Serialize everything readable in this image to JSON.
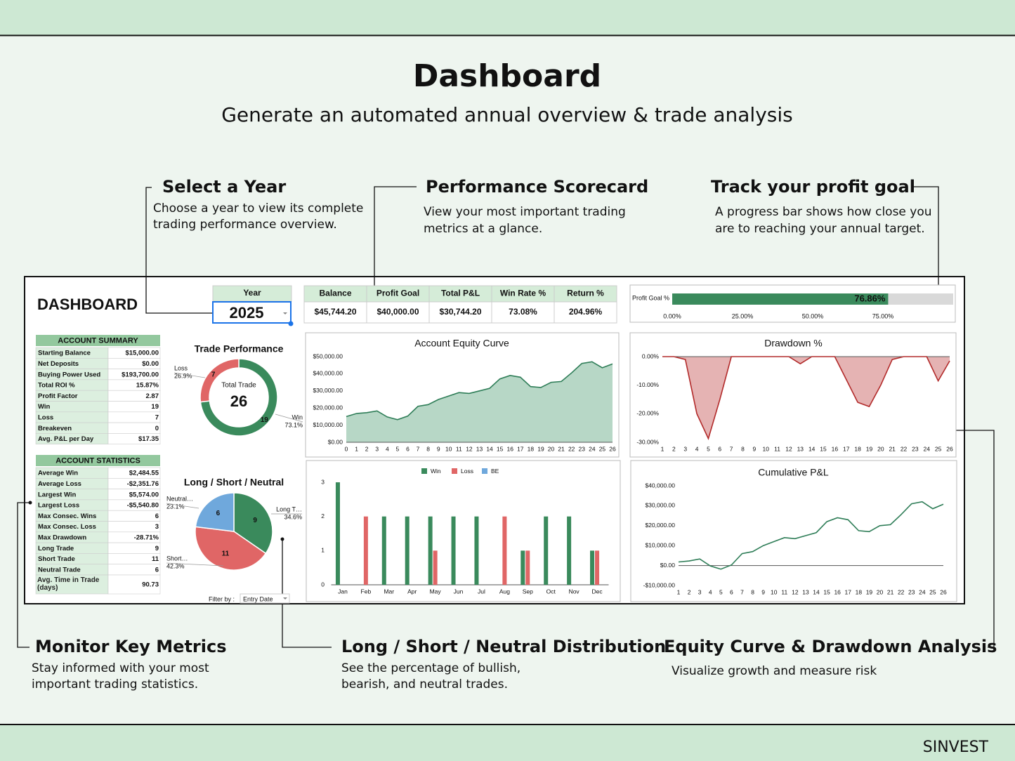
{
  "header": {
    "title": "Dashboard",
    "subtitle": "Generate an automated annual overview & trade analysis"
  },
  "callouts": [
    {
      "title": "Select a Year",
      "text": [
        "Choose a year to view its complete",
        "trading performance overview."
      ]
    },
    {
      "title": "Performance Scorecard",
      "text": [
        "View your most important trading",
        "metrics at a glance."
      ]
    },
    {
      "title": "Track your profit goal",
      "text": [
        "A progress bar shows how close you",
        "are to reaching your annual target."
      ]
    },
    {
      "title": "Monitor Key Metrics",
      "text": [
        "Stay informed with your most",
        "important trading statistics."
      ]
    },
    {
      "title": "Long / Short / Neutral Distribution",
      "text": [
        "See the percentage of bullish,",
        "bearish, and neutral trades."
      ]
    },
    {
      "title": "Equity Curve & Drawdown Analysis",
      "text": [
        "Visualize growth and measure risk"
      ]
    }
  ],
  "dashboard": {
    "title": "DASHBOARD",
    "year": {
      "label": "Year",
      "value": 2025
    },
    "scorecard": {
      "headers": [
        "Balance",
        "Profit Goal",
        "Total P&L",
        "Win Rate %",
        "Return %"
      ],
      "values": [
        "$45,744.20",
        "$40,000.00",
        "$30,744.20",
        "73.08%",
        "204.96%"
      ]
    },
    "profit_goal": {
      "label": "Profit Goal %",
      "value": 76.86,
      "value_label": "76.86%",
      "xlim": [
        0,
        100
      ],
      "xticks": [
        {
          "value": 0,
          "label": "0.00%"
        },
        {
          "value": 25,
          "label": "25.00%"
        },
        {
          "value": 50,
          "label": "50.00%"
        },
        {
          "value": 75,
          "label": "75.00%"
        }
      ],
      "color": "#3a8a5c"
    },
    "account_summary": {
      "title": "ACCOUNT SUMMARY",
      "rows": [
        [
          "Starting Balance",
          "$15,000.00"
        ],
        [
          "Net Deposits",
          "$0.00"
        ],
        [
          "Buying Power Used",
          "$193,700.00"
        ],
        [
          "Total ROI %",
          "15.87%"
        ],
        [
          "Profit Factor",
          "2.87"
        ],
        [
          "Win",
          "19"
        ],
        [
          "Loss",
          "7"
        ],
        [
          "Breakeven",
          "0"
        ],
        [
          "Avg. P&L per Day",
          "$17.35"
        ]
      ]
    },
    "account_statistics": {
      "title": "ACCOUNT STATISTICS",
      "rows": [
        [
          "Average Win",
          "$2,484.55"
        ],
        [
          "Average Loss",
          "-$2,351.76"
        ],
        [
          "Largest Win",
          "$5,574.00"
        ],
        [
          "Largest Loss",
          "-$5,540.80"
        ],
        [
          "Max Consec. Wins",
          "6"
        ],
        [
          "Max Consec. Loss",
          "3"
        ],
        [
          "Max Drawdown",
          "-28.71%"
        ],
        [
          "Long Trade",
          "9"
        ],
        [
          "Short Trade",
          "11"
        ],
        [
          "Neutral Trade",
          "6"
        ],
        [
          "Avg. Time in Trade (days)",
          "90.73"
        ]
      ]
    },
    "trade_performance": {
      "type": "donut",
      "title": "Trade Performance",
      "center_label": "Total Trade",
      "total": 26,
      "categories": [
        "Win",
        "Loss"
      ],
      "values": [
        19,
        7
      ],
      "share_labels": [
        "73.1%",
        "26.9%"
      ],
      "colors": [
        "#3a8a5c",
        "#e06666"
      ]
    },
    "long_short": {
      "type": "pie",
      "title": "Long / Short / Neutral",
      "categories": [
        "Long T…",
        "Short…",
        "Neutral…"
      ],
      "values": [
        9,
        11,
        6
      ],
      "share_labels": [
        "34.6%",
        "42.3%",
        "23.1%"
      ],
      "colors": [
        "#3a8a5c",
        "#e06666",
        "#6fa8dc"
      ]
    },
    "filter": {
      "label": "Filter by :",
      "value": "Entry Date"
    },
    "equity_curve": {
      "type": "area",
      "title": "Account Equity Curve",
      "x": [
        0,
        1,
        2,
        3,
        4,
        5,
        6,
        7,
        8,
        9,
        10,
        11,
        12,
        13,
        14,
        15,
        16,
        17,
        18,
        19,
        20,
        21,
        22,
        23,
        24,
        25,
        26
      ],
      "values": [
        15000,
        16800,
        17300,
        18300,
        14800,
        13200,
        15300,
        21000,
        22000,
        25000,
        27000,
        29000,
        28500,
        30000,
        31500,
        37000,
        39000,
        38000,
        32500,
        32000,
        35000,
        35500,
        40500,
        46000,
        47000,
        43500,
        45744.2
      ],
      "xlim": [
        0,
        26
      ],
      "ylim": [
        0,
        50000
      ],
      "yticks": [
        {
          "value": 0,
          "label": "$0.00"
        },
        {
          "value": 10000,
          "label": "$10,000.00"
        },
        {
          "value": 20000,
          "label": "$20,000.00"
        },
        {
          "value": 30000,
          "label": "$30,000.00"
        },
        {
          "value": 40000,
          "label": "$40,000.00"
        },
        {
          "value": 50000,
          "label": "$50,000.00"
        }
      ],
      "color": "#2e7d57",
      "fill": "#b7d7c6"
    },
    "drawdown": {
      "type": "area",
      "title": "Drawdown %",
      "x": [
        1,
        2,
        3,
        4,
        5,
        6,
        7,
        8,
        9,
        10,
        11,
        12,
        13,
        14,
        15,
        16,
        17,
        18,
        19,
        20,
        21,
        22,
        23,
        24,
        25,
        26
      ],
      "values": [
        0,
        0,
        -1,
        -20,
        -28.71,
        -15,
        0,
        0,
        0,
        0,
        0,
        0,
        -2.5,
        0,
        0,
        0,
        -8,
        -16,
        -17.5,
        -10,
        -1,
        0,
        0,
        0,
        -8.5,
        -1.5
      ],
      "xlim": [
        1,
        26
      ],
      "ylim": [
        -30,
        0
      ],
      "yticks": [
        {
          "value": 0,
          "label": "0.00%"
        },
        {
          "value": -10,
          "label": "-10.00%"
        },
        {
          "value": -20,
          "label": "-20.00%"
        },
        {
          "value": -30,
          "label": "-30.00%"
        }
      ],
      "color": "#b22a2a",
      "fill": "#e5b3b3"
    },
    "monthly": {
      "type": "bar",
      "categories": [
        "Jan",
        "Feb",
        "Mar",
        "Apr",
        "May",
        "Jun",
        "Jul",
        "Aug",
        "Sep",
        "Oct",
        "Nov",
        "Dec"
      ],
      "series": [
        {
          "name": "Win",
          "color": "#3a8a5c",
          "values": [
            3,
            0,
            2,
            2,
            2,
            2,
            2,
            0,
            1,
            2,
            2,
            1
          ]
        },
        {
          "name": "Loss",
          "color": "#e06666",
          "values": [
            0,
            2,
            0,
            0,
            1,
            0,
            0,
            2,
            1,
            0,
            0,
            1
          ]
        },
        {
          "name": "BE",
          "color": "#6fa8dc",
          "values": [
            0,
            0,
            0,
            0,
            0,
            0,
            0,
            0,
            0,
            0,
            0,
            0
          ]
        }
      ],
      "ylim": [
        0,
        3
      ],
      "yticks": [
        0,
        1,
        2,
        3
      ]
    },
    "cumulative": {
      "type": "line",
      "title": "Cumulative P&L",
      "x": [
        1,
        2,
        3,
        4,
        5,
        6,
        7,
        8,
        9,
        10,
        11,
        12,
        13,
        14,
        15,
        16,
        17,
        18,
        19,
        20,
        21,
        22,
        23,
        24,
        25,
        26
      ],
      "values": [
        1800,
        2300,
        3300,
        -200,
        -1800,
        300,
        6000,
        7000,
        10000,
        12000,
        14000,
        13500,
        15000,
        16500,
        22000,
        24000,
        23000,
        17500,
        17000,
        20000,
        20500,
        25500,
        31000,
        32000,
        28500,
        30744.2
      ],
      "xlim": [
        1,
        26
      ],
      "ylim": [
        -10000,
        40000
      ],
      "yticks": [
        {
          "value": -10000,
          "label": "-$10,000.00"
        },
        {
          "value": 0,
          "label": "$0.00"
        },
        {
          "value": 10000,
          "label": "$10,000.00"
        },
        {
          "value": 20000,
          "label": "$20,000.00"
        },
        {
          "value": 30000,
          "label": "$30,000.00"
        },
        {
          "value": 40000,
          "label": "$40,000.00"
        }
      ],
      "color": "#2e7d57"
    }
  },
  "footer": {
    "brand": "SINVEST"
  }
}
